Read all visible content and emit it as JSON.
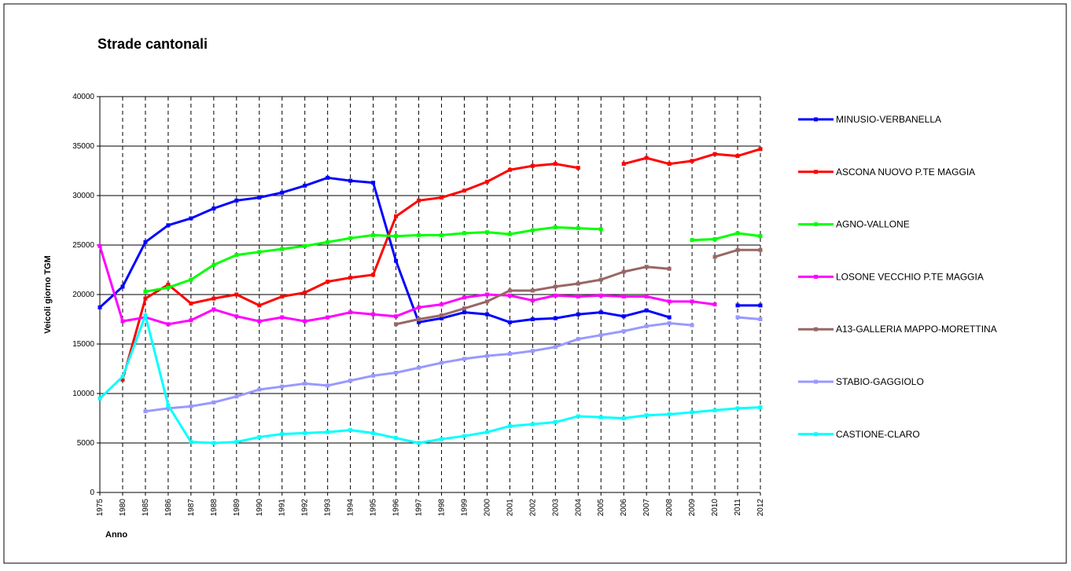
{
  "chart_data": {
    "type": "line",
    "title": "Strade cantonali",
    "x_label": "Anno",
    "y_label": "Veicoli giorno TGM",
    "categories": [
      "1975",
      "1980",
      "1985",
      "1986",
      "1987",
      "1988",
      "1989",
      "1990",
      "1991",
      "1992",
      "1993",
      "1994",
      "1995",
      "1996",
      "1997",
      "1998",
      "1999",
      "2000",
      "2001",
      "2002",
      "2003",
      "2004",
      "2005",
      "2006",
      "2007",
      "2008",
      "2009",
      "2010",
      "2011",
      "2012"
    ],
    "ylim": [
      0,
      40000
    ],
    "yticks": [
      0,
      5000,
      10000,
      15000,
      20000,
      25000,
      30000,
      35000,
      40000
    ],
    "grid": true,
    "legend": "right",
    "series": [
      {
        "name": "MINUSIO-VERBANELLA",
        "color": "#0000ff",
        "values": [
          18700,
          20800,
          25300,
          27000,
          27700,
          28700,
          29500,
          29800,
          30300,
          31000,
          31800,
          31500,
          31300,
          23400,
          17200,
          17600,
          18200,
          18000,
          17200,
          17500,
          17600,
          18000,
          18200,
          17800,
          18400,
          17700,
          null,
          null,
          18900,
          18900
        ]
      },
      {
        "name": "ASCONA NUOVO P.TE MAGGIA",
        "color": "#ff0000",
        "values": [
          null,
          11400,
          19600,
          21000,
          19100,
          19600,
          20000,
          18900,
          19800,
          20200,
          21300,
          21700,
          22000,
          27900,
          29500,
          29800,
          30500,
          31400,
          32600,
          33000,
          33200,
          32800,
          null,
          33200,
          33800,
          33200,
          33500,
          34200,
          34000,
          34700
        ]
      },
      {
        "name": "AGNO-VALLONE",
        "color": "#00ff00",
        "values": [
          null,
          null,
          20300,
          20700,
          21500,
          23000,
          24000,
          24300,
          24600,
          24900,
          25300,
          25700,
          26000,
          25900,
          26000,
          26000,
          26200,
          26300,
          26100,
          26500,
          26800,
          26700,
          26600,
          null,
          null,
          null,
          25500,
          25600,
          26200,
          25900
        ]
      },
      {
        "name": "LOSONE VECCHIO P.TE MAGGIA",
        "color": "#ff00ff",
        "values": [
          24900,
          17300,
          17700,
          17000,
          17400,
          18500,
          17800,
          17300,
          17700,
          17300,
          17700,
          18200,
          18000,
          17800,
          18700,
          19000,
          19700,
          20000,
          19900,
          19400,
          19900,
          19800,
          19900,
          19800,
          19800,
          19300,
          19300,
          19000,
          null,
          null
        ]
      },
      {
        "name": "A13-GALLERIA MAPPO-MORETTINA",
        "color": "#996666",
        "values": [
          null,
          null,
          null,
          null,
          null,
          null,
          null,
          null,
          null,
          null,
          null,
          null,
          null,
          17000,
          17500,
          17900,
          18600,
          19300,
          20400,
          20400,
          20800,
          21100,
          21500,
          22300,
          22800,
          22600,
          null,
          23800,
          24500,
          24500
        ]
      },
      {
        "name": "STABIO-GAGGIOLO",
        "color": "#9999ff",
        "values": [
          null,
          null,
          8200,
          8500,
          8700,
          9100,
          9700,
          10400,
          10700,
          11000,
          10800,
          11300,
          11800,
          12100,
          12600,
          13100,
          13500,
          13800,
          14000,
          14300,
          14700,
          15500,
          15900,
          16300,
          16800,
          17100,
          16900,
          null,
          17700,
          17500
        ]
      },
      {
        "name": "CASTIONE-CLARO",
        "color": "#00ffff",
        "values": [
          9500,
          11700,
          17900,
          8800,
          5100,
          5000,
          5100,
          5600,
          5900,
          6000,
          6100,
          6300,
          6000,
          5500,
          5000,
          5400,
          5700,
          6100,
          6700,
          6900,
          7100,
          7700,
          7600,
          7500,
          7800,
          7900,
          8100,
          8300,
          8500,
          8600
        ]
      }
    ]
  }
}
